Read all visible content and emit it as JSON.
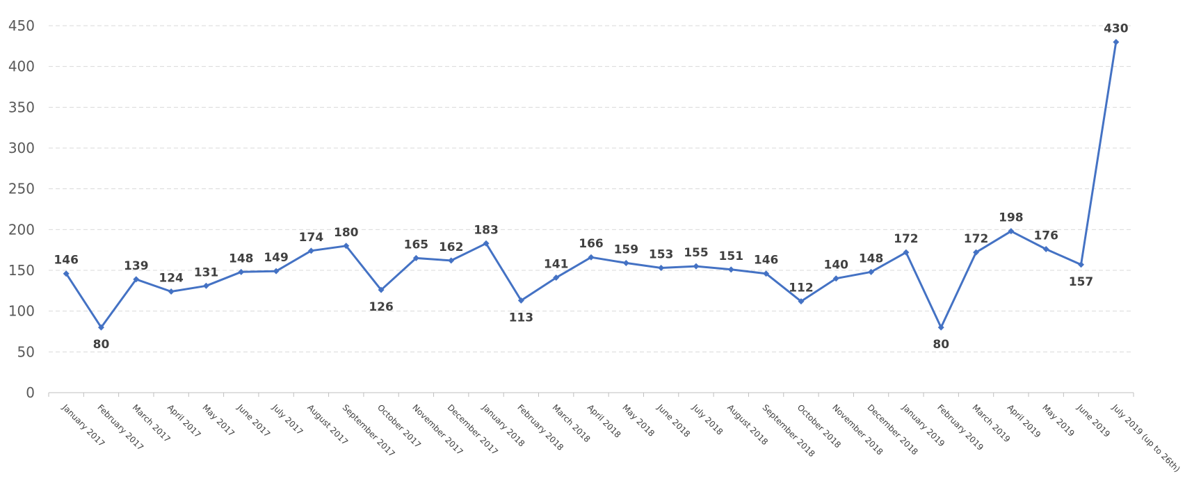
{
  "chart_data": {
    "type": "line",
    "title": "",
    "xlabel": "",
    "ylabel": "",
    "ylim": [
      0,
      450
    ],
    "y_ticks": [
      0,
      50,
      100,
      150,
      200,
      250,
      300,
      350,
      400,
      450
    ],
    "grid": "horizontal-dashed",
    "legend": "none",
    "categories": [
      "January 2017",
      "February 2017",
      "March 2017",
      "April 2017",
      "May 2017",
      "June 2017",
      "July 2017",
      "August 2017",
      "September 2017",
      "October 2017",
      "November 2017",
      "December 2017",
      "January 2018",
      "February 2018",
      "March 2018",
      "April 2018",
      "May 2018",
      "June 2018",
      "July 2018",
      "August 2018",
      "September 2018",
      "October 2018",
      "November 2018",
      "December 2018",
      "January 2019",
      "February 2019",
      "March 2019",
      "April 2019",
      "May 2019",
      "June 2019",
      "July 2019 (up to 26th)"
    ],
    "series": [
      {
        "values": [
          146,
          80,
          139,
          124,
          131,
          148,
          149,
          174,
          180,
          126,
          165,
          162,
          183,
          113,
          141,
          166,
          159,
          153,
          155,
          151,
          146,
          112,
          140,
          148,
          172,
          80,
          172,
          198,
          176,
          157,
          430
        ],
        "label_below": [
          false,
          true,
          false,
          false,
          false,
          false,
          false,
          false,
          false,
          true,
          false,
          false,
          false,
          true,
          false,
          false,
          false,
          false,
          false,
          false,
          false,
          false,
          false,
          false,
          false,
          true,
          false,
          false,
          false,
          true,
          false
        ]
      }
    ],
    "colors": {
      "line": "#4472C4",
      "grid": "#D9D9D9",
      "axis": "#BFBFBF"
    }
  }
}
